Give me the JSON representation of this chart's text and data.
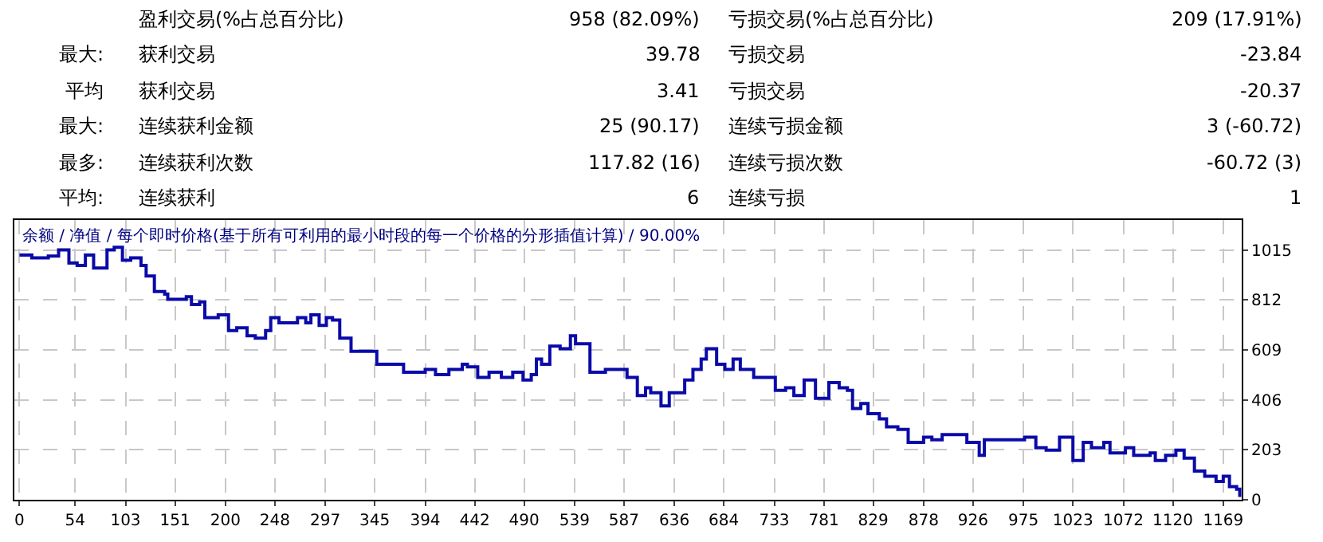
{
  "chart_data": [
    {
      "type": "other",
      "annotations": [
        "盈利交易(%占总百分比)",
        "958 (82.09%)",
        "亏损交易(%占总百分比)",
        "209 (17.91%)",
        "最大:",
        "获利交易",
        "39.78",
        "亏损交易",
        "-23.84",
        "平均",
        "获利交易",
        "3.41",
        "亏损交易",
        "-20.37",
        "最大:",
        "连续获利金额",
        "25 (90.17)",
        "连续亏损金额",
        "3 (-60.72)",
        "最多:",
        "连续获利次数",
        "117.82 (16)",
        "连续亏损次数",
        "-60.72 (3)",
        "平均:",
        "连续获利",
        "6",
        "连续亏损",
        "1"
      ]
    },
    {
      "type": "step",
      "title": "余额 / 净值 / 每个即时价格(基于所有可利用的最小时段的每一个价格的分形插值计算) / 90.00%",
      "x": [
        0,
        12,
        28,
        38,
        48,
        56,
        64,
        72,
        85,
        92,
        100,
        108,
        118,
        123,
        131,
        141,
        144,
        162,
        167,
        175,
        180,
        193,
        203,
        211,
        221,
        229,
        239,
        244,
        252,
        262,
        270,
        278,
        283,
        291,
        298,
        304,
        311,
        322,
        337,
        347,
        363,
        373,
        394,
        404,
        417,
        430,
        435,
        445,
        456,
        468,
        479,
        489,
        497,
        502,
        507,
        515,
        525,
        535,
        540,
        554,
        569,
        579,
        590,
        600,
        608,
        613,
        623,
        631,
        639,
        646,
        654,
        662,
        667,
        677,
        685,
        693,
        700,
        713,
        724,
        734,
        744,
        752,
        762,
        773,
        786,
        796,
        804,
        809,
        817,
        824,
        835,
        842,
        853,
        863,
        878,
        886,
        896,
        909,
        920,
        932,
        937,
        956,
        976,
        987,
        997,
        1010,
        1023,
        1033,
        1041,
        1053,
        1059,
        1074,
        1082,
        1098,
        1103,
        1113,
        1123,
        1131,
        1141,
        1151,
        1162,
        1169,
        1175,
        1182,
        1185
      ],
      "series": [
        {
          "color": "#0a0aa8",
          "values": [
            994,
            983,
            990,
            1015,
            962,
            952,
            994,
            941,
            1015,
            1026,
            973,
            983,
            952,
            909,
            846,
            835,
            814,
            825,
            793,
            804,
            740,
            751,
            687,
            698,
            666,
            656,
            687,
            740,
            719,
            719,
            740,
            719,
            751,
            708,
            740,
            730,
            656,
            603,
            603,
            550,
            550,
            518,
            529,
            508,
            529,
            550,
            540,
            497,
            518,
            497,
            518,
            486,
            508,
            571,
            550,
            624,
            613,
            666,
            634,
            518,
            529,
            529,
            497,
            423,
            455,
            434,
            381,
            434,
            434,
            486,
            529,
            571,
            613,
            550,
            529,
            571,
            529,
            497,
            497,
            444,
            455,
            423,
            486,
            412,
            476,
            455,
            444,
            370,
            391,
            349,
            328,
            296,
            285,
            233,
            254,
            243,
            264,
            264,
            233,
            180,
            243,
            243,
            254,
            211,
            201,
            254,
            159,
            233,
            211,
            233,
            190,
            211,
            180,
            190,
            159,
            180,
            201,
            169,
            116,
            95,
            74,
            95,
            53,
            42,
            11
          ]
        }
      ],
      "xlim": [
        -5,
        1187
      ],
      "ylim": [
        0,
        1136
      ],
      "xticks": [
        0,
        54,
        103,
        151,
        200,
        248,
        297,
        345,
        394,
        442,
        490,
        539,
        587,
        636,
        684,
        733,
        781,
        829,
        878,
        926,
        975,
        1023,
        1072,
        1120,
        1169
      ],
      "yticks": [
        0,
        203,
        406,
        609,
        812,
        1015
      ],
      "grid": true,
      "line_style": "solid",
      "marker": "none"
    }
  ]
}
